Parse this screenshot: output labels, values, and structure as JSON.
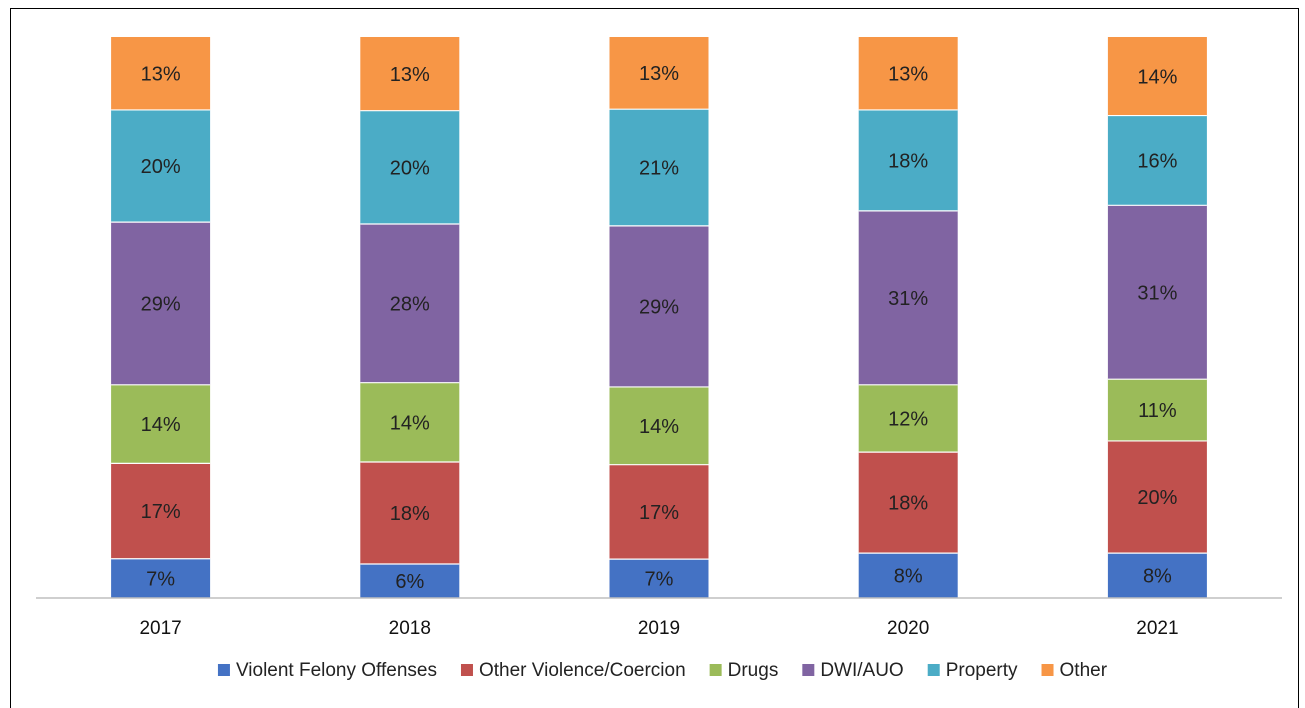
{
  "chart_data": {
    "type": "bar",
    "stacked": true,
    "normalized_percent": true,
    "categories": [
      "2017",
      "2018",
      "2019",
      "2020",
      "2021"
    ],
    "series": [
      {
        "name": "Violent Felony Offenses",
        "color": "#4472C4",
        "values": [
          7,
          6,
          7,
          8,
          8
        ],
        "labels": [
          "7%",
          "6%",
          "7%",
          "8%",
          "8%"
        ]
      },
      {
        "name": "Other Violence/Coercion",
        "color": "#C0504D",
        "values": [
          17,
          18,
          17,
          18,
          20
        ],
        "labels": [
          "17%",
          "18%",
          "17%",
          "18%",
          "20%"
        ]
      },
      {
        "name": "Drugs",
        "color": "#9BBB59",
        "values": [
          14,
          14,
          14,
          12,
          11
        ],
        "labels": [
          "14%",
          "14%",
          "14%",
          "12%",
          "11%"
        ]
      },
      {
        "name": "DWI/AUO",
        "color": "#8064A2",
        "values": [
          29,
          28,
          29,
          31,
          31
        ],
        "labels": [
          "29%",
          "28%",
          "29%",
          "31%",
          "31%"
        ]
      },
      {
        "name": "Property",
        "color": "#4BACC6",
        "values": [
          20,
          20,
          21,
          18,
          16
        ],
        "labels": [
          "20%",
          "20%",
          "21%",
          "18%",
          "16%"
        ]
      },
      {
        "name": "Other",
        "color": "#F79646",
        "values": [
          13,
          13,
          13,
          13,
          14
        ],
        "labels": [
          "13%",
          "13%",
          "13%",
          "13%",
          "14%"
        ]
      }
    ],
    "title": "",
    "xlabel": "",
    "ylabel": "",
    "ylim": [
      0,
      100
    ],
    "grid": false,
    "legend_position": "bottom"
  }
}
